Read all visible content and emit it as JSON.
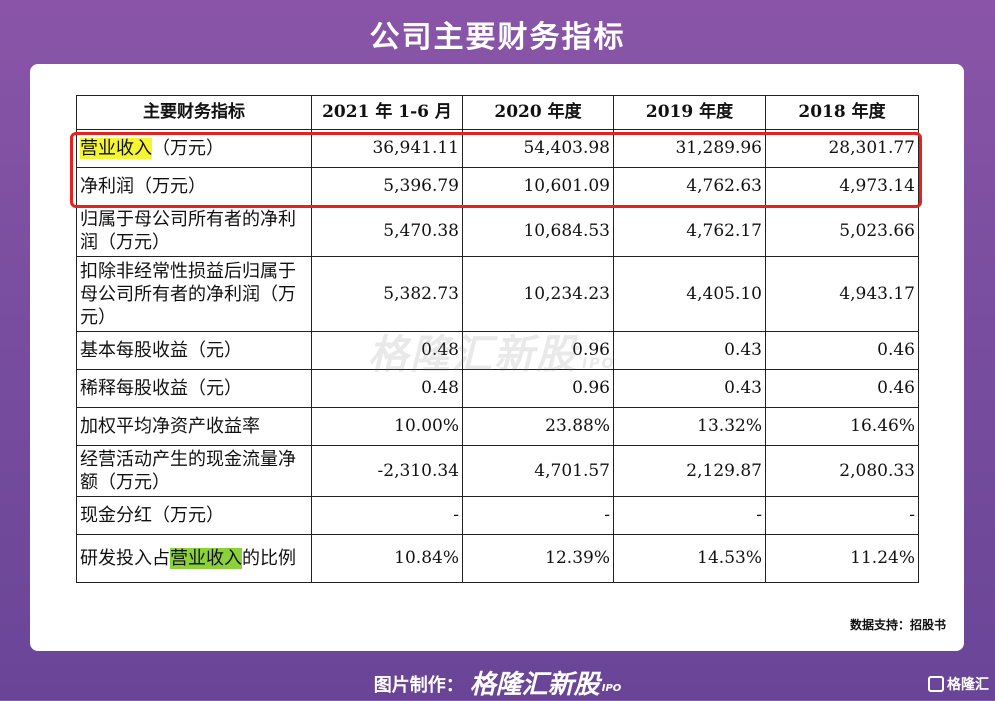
{
  "page_title": "公司主要财务指标",
  "table": {
    "headers": [
      "主要财务指标",
      "2021 年 1-6 月",
      "2020 年度",
      "2019 年度",
      "2018 年度"
    ],
    "rows": [
      {
        "pre": "",
        "hl": "营业收入",
        "post": "（万元）",
        "hl_color": "yellow",
        "values": [
          "36,941.11",
          "54,403.98",
          "31,289.96",
          "28,301.77"
        ]
      },
      {
        "pre": "净利润（万元）",
        "hl": "",
        "post": "",
        "values": [
          "5,396.79",
          "10,601.09",
          "4,762.63",
          "4,973.14"
        ]
      },
      {
        "pre": "归属于母公司所有者的净利润（万元）",
        "hl": "",
        "post": "",
        "values": [
          "5,470.38",
          "10,684.53",
          "4,762.17",
          "5,023.66"
        ]
      },
      {
        "pre": "扣除非经常性损益后归属于母公司所有者的净利润（万元）",
        "hl": "",
        "post": "",
        "values": [
          "5,382.73",
          "10,234.23",
          "4,405.10",
          "4,943.17"
        ]
      },
      {
        "pre": "基本每股收益（元）",
        "hl": "",
        "post": "",
        "values": [
          "0.48",
          "0.96",
          "0.43",
          "0.46"
        ]
      },
      {
        "pre": "稀释每股收益（元）",
        "hl": "",
        "post": "",
        "values": [
          "0.48",
          "0.96",
          "0.43",
          "0.46"
        ]
      },
      {
        "pre": "加权平均净资产收益率",
        "hl": "",
        "post": "",
        "values": [
          "10.00%",
          "23.88%",
          "13.32%",
          "16.46%"
        ]
      },
      {
        "pre": "经营活动产生的现金流量净额（万元）",
        "hl": "",
        "post": "",
        "values": [
          "-2,310.34",
          "4,701.57",
          "2,129.87",
          "2,080.33"
        ]
      },
      {
        "pre": "现金分红（万元）",
        "hl": "",
        "post": "",
        "values": [
          "-",
          "-",
          "-",
          "-"
        ]
      },
      {
        "pre": "研发投入占",
        "hl": "营业收入",
        "post": "的比例",
        "hl_color": "green",
        "values": [
          "10.84%",
          "12.39%",
          "14.53%",
          "11.24%"
        ]
      }
    ]
  },
  "watermark": {
    "text": "格隆汇新股",
    "sub": "IPO"
  },
  "source_note": "数据支持：招股书",
  "footer": {
    "label": "图片制作：",
    "brand": "格隆汇新股",
    "sub": "IPO"
  },
  "corner_logo": "格隆汇",
  "colors": {
    "highlight_yellow": "#f6f531",
    "highlight_green": "#8bd23a",
    "box_red": "#e8211e",
    "background": "#7a4ea0"
  }
}
